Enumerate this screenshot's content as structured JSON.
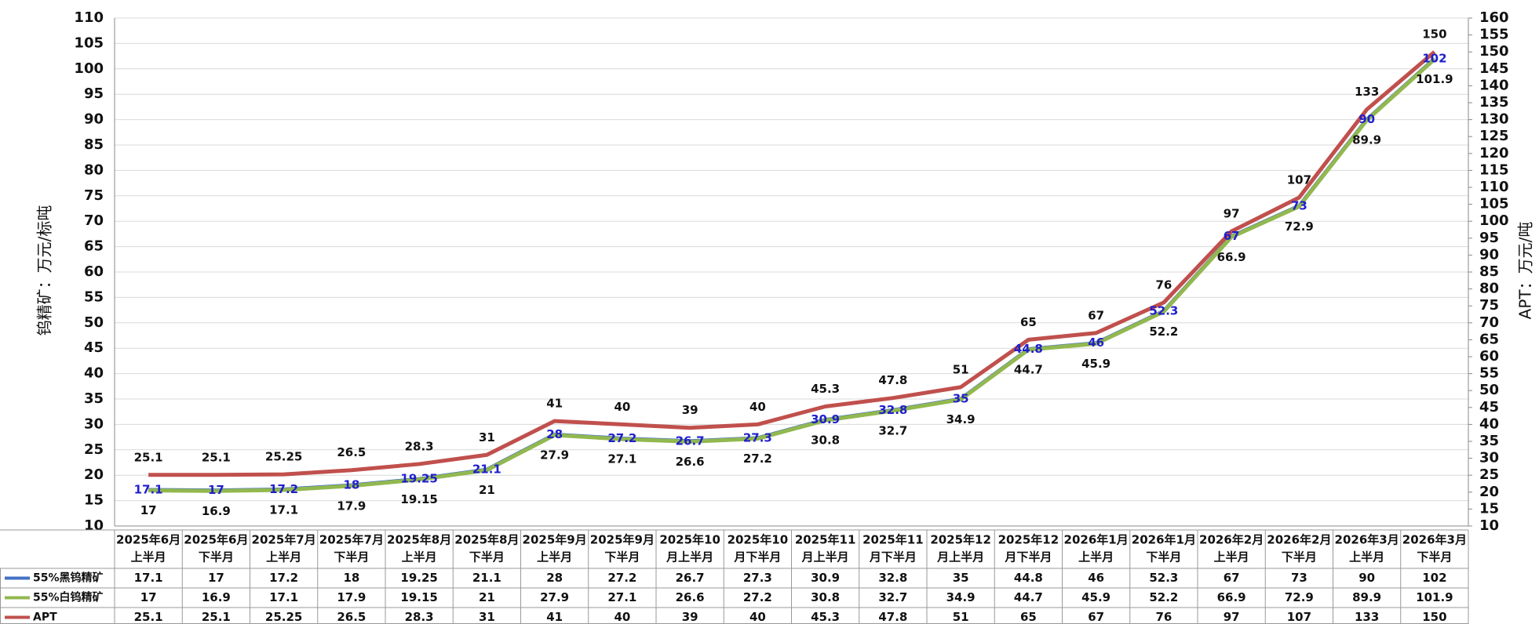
{
  "chart_data": {
    "type": "line",
    "y_label": "钨精矿：万元/标吨",
    "y2_label": "APT：万元/吨",
    "categories": [
      [
        "2025年6月",
        "上半月"
      ],
      [
        "2025年6月",
        "下半月"
      ],
      [
        "2025年7月",
        "上半月"
      ],
      [
        "2025年7月",
        "下半月"
      ],
      [
        "2025年8月",
        "上半月"
      ],
      [
        "2025年8月",
        "下半月"
      ],
      [
        "2025年9月",
        "上半月"
      ],
      [
        "2025年9月",
        "下半月"
      ],
      [
        "2025年10",
        "月上半月"
      ],
      [
        "2025年10",
        "月下半月"
      ],
      [
        "2025年11",
        "月上半月"
      ],
      [
        "2025年11",
        "月下半月"
      ],
      [
        "2025年12",
        "月上半月"
      ],
      [
        "2025年12",
        "月下半月"
      ],
      [
        "2026年1月",
        "上半月"
      ],
      [
        "2026年1月",
        "下半月"
      ],
      [
        "2026年2月",
        "上半月"
      ],
      [
        "2026年2月",
        "下半月"
      ],
      [
        "2026年3月",
        "上半月"
      ],
      [
        "2026年3月",
        "下半月"
      ]
    ],
    "series": [
      {
        "name": "55%黑钨精矿",
        "color": "#4472c4",
        "label_color": "#1f1fcc",
        "values": [
          17.1,
          17,
          17.2,
          18,
          19.25,
          21.1,
          28,
          27.2,
          26.7,
          27.3,
          30.9,
          32.8,
          35,
          44.8,
          46,
          52.3,
          67,
          73,
          90,
          102
        ]
      },
      {
        "name": "55%白钨精矿",
        "color": "#92b84f",
        "label_color": "#111111",
        "values": [
          17,
          16.9,
          17.1,
          17.9,
          19.15,
          21,
          27.9,
          27.1,
          26.6,
          27.2,
          30.8,
          32.7,
          34.9,
          44.7,
          45.9,
          52.2,
          66.9,
          72.9,
          89.9,
          101.9
        ]
      },
      {
        "name": "APT",
        "color": "#c0504d",
        "label_color": "#111111",
        "axis": "y2",
        "values": [
          25.1,
          25.1,
          25.25,
          26.5,
          28.3,
          31,
          41,
          40,
          39,
          40,
          45.3,
          47.8,
          51,
          65,
          67,
          76,
          97,
          107,
          133,
          150
        ]
      }
    ],
    "ylim": [
      10,
      110
    ],
    "yticks": [
      10,
      15,
      20,
      25,
      30,
      35,
      40,
      45,
      50,
      55,
      60,
      65,
      70,
      75,
      80,
      85,
      90,
      95,
      100,
      105,
      110
    ],
    "y2lim": [
      10,
      160
    ],
    "y2ticks": [
      10,
      15,
      20,
      25,
      30,
      35,
      40,
      45,
      50,
      55,
      60,
      65,
      70,
      75,
      80,
      85,
      90,
      95,
      100,
      105,
      110,
      115,
      120,
      125,
      130,
      135,
      140,
      145,
      150,
      155,
      160
    ],
    "grid": true
  }
}
